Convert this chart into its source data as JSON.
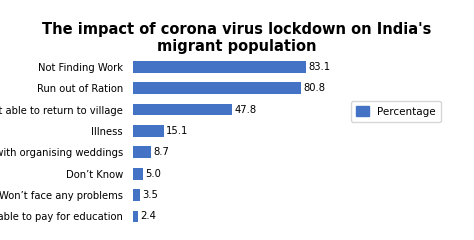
{
  "title": "The impact of corona virus lockdown on India's\nmigrant population",
  "categories": [
    "Not able to pay for education",
    "Won’t face any problems",
    "Don’t Know",
    "Issues with organising weddings",
    "Illness",
    "Not able to return to village",
    "Run out of Ration",
    "Not Finding Work"
  ],
  "values": [
    2.4,
    3.5,
    5.0,
    8.7,
    15.1,
    47.8,
    80.8,
    83.1
  ],
  "bar_color": "#4472C4",
  "background_color": "#ffffff",
  "legend_label": "Percentage",
  "xlim": [
    0,
    100
  ],
  "title_fontsize": 10.5,
  "label_fontsize": 7.2,
  "value_fontsize": 7.2
}
